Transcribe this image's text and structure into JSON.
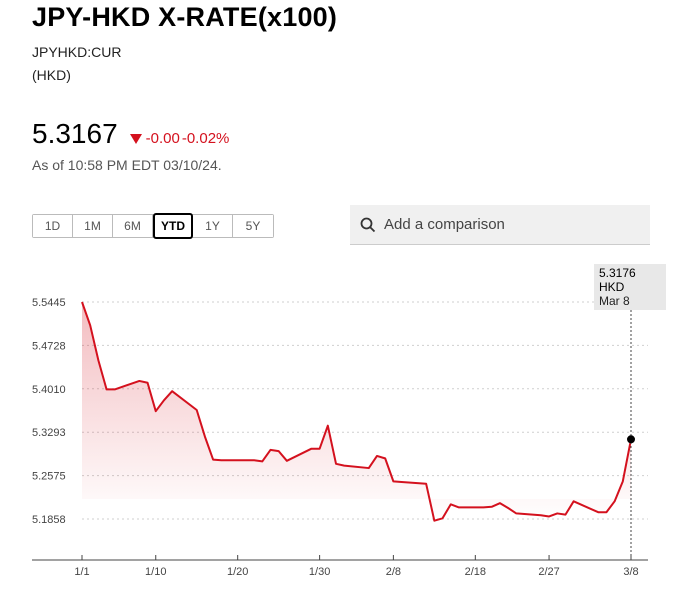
{
  "header": {
    "title": "JPY-HKD X-RATE(x100)",
    "ticker": "JPYHKD:CUR",
    "currency": "(HKD)"
  },
  "quote": {
    "price": "5.3167",
    "change": "-0.00",
    "change_pct": "-0.02%",
    "as_of": "As of 10:58 PM EDT 03/10/24."
  },
  "range_buttons": [
    "1D",
    "1M",
    "6M",
    "YTD",
    "1Y",
    "5Y"
  ],
  "active_range": "YTD",
  "search": {
    "placeholder": "Add a comparison"
  },
  "tooltip": {
    "value": "5.3176 HKD",
    "date": "Mar 8"
  },
  "colors": {
    "line": "#d4111e",
    "negative": "#d4111e",
    "tooltip_bg": "#e8e8e8"
  },
  "icons": {
    "search": "search-icon",
    "down": "triangle-down-icon"
  },
  "chart_data": {
    "type": "area",
    "x_ticks": [
      "1/1",
      "1/10",
      "1/20",
      "1/30",
      "2/8",
      "2/18",
      "2/27",
      "3/8"
    ],
    "y_ticks": [
      "5.5445",
      "5.4728",
      "5.4010",
      "5.3293",
      "5.2575",
      "5.1858"
    ],
    "ylim": [
      5.1858,
      5.5445
    ],
    "grid": true,
    "x": [
      "1/1",
      "1/2",
      "1/3",
      "1/4",
      "1/5",
      "1/8",
      "1/9",
      "1/10",
      "1/11",
      "1/12",
      "1/15",
      "1/16",
      "1/17",
      "1/18",
      "1/19",
      "1/22",
      "1/23",
      "1/24",
      "1/25",
      "1/26",
      "1/29",
      "1/30",
      "1/31",
      "2/1",
      "2/2",
      "2/5",
      "2/6",
      "2/7",
      "2/8",
      "2/9",
      "2/12",
      "2/13",
      "2/14",
      "2/15",
      "2/16",
      "2/19",
      "2/20",
      "2/21",
      "2/22",
      "2/23",
      "2/26",
      "2/27",
      "2/28",
      "2/29",
      "3/1",
      "3/4",
      "3/5",
      "3/6",
      "3/7",
      "3/8"
    ],
    "series": [
      {
        "values": [
          5.5445,
          5.506,
          5.448,
          5.4,
          5.4,
          5.414,
          5.411,
          5.364,
          5.382,
          5.397,
          5.366,
          5.322,
          5.284,
          5.283,
          5.283,
          5.283,
          5.281,
          5.3,
          5.298,
          5.282,
          5.302,
          5.302,
          5.34,
          5.277,
          5.274,
          5.27,
          5.29,
          5.286,
          5.248,
          5.247,
          5.244,
          5.183,
          5.187,
          5.21,
          5.205,
          5.205,
          5.206,
          5.212,
          5.204,
          5.195,
          5.192,
          5.19,
          5.195,
          5.193,
          5.215,
          5.197,
          5.197,
          5.215,
          5.248,
          5.3176
        ]
      }
    ]
  }
}
